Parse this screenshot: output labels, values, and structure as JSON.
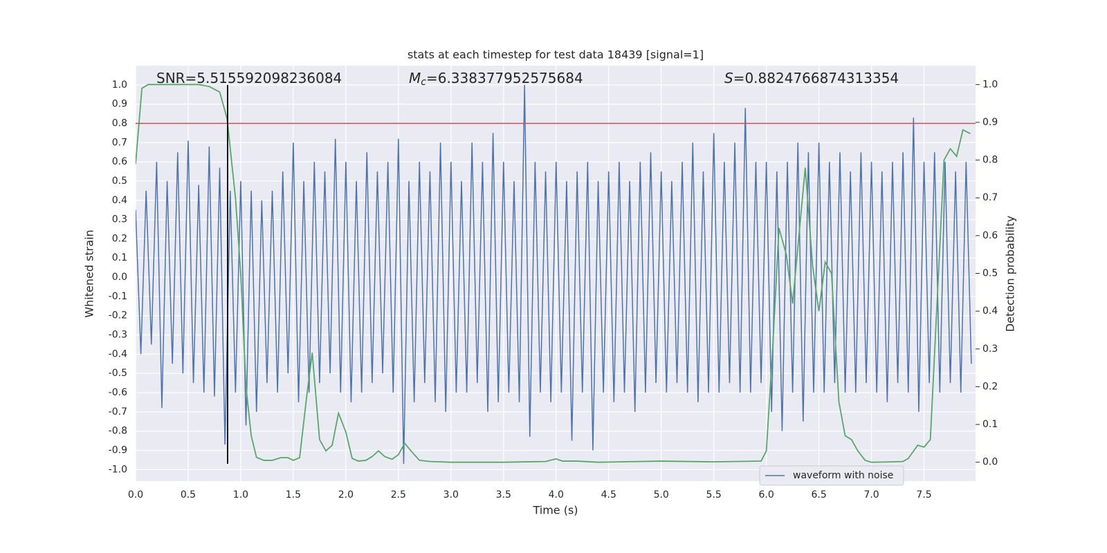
{
  "chart_data": {
    "type": "line",
    "title": "stats at each timestep for test data 18439 [signal=1]",
    "x_label": "Time (s)",
    "y_label": "Whitened strain",
    "y2_label": "Detection probability",
    "xlim": [
      0,
      7.99
    ],
    "ylim": [
      -1.06,
      1.1
    ],
    "y2lim": [
      -0.05,
      1.05
    ],
    "xticks": [
      {
        "value": 0,
        "label": "0.0"
      },
      0.5,
      {
        "value": 1,
        "label": "1.0"
      },
      1.5,
      {
        "value": 2,
        "label": "2.0"
      },
      2.5,
      {
        "value": 3,
        "label": "3.0"
      },
      3.5,
      {
        "value": 4,
        "label": "4.0"
      },
      4.5,
      {
        "value": 5,
        "label": "5.0"
      },
      5.5,
      {
        "value": 6,
        "label": "6.0"
      },
      6.5,
      {
        "value": 7,
        "label": "7.0"
      },
      7.5
    ],
    "yticks": [
      {
        "value": -1,
        "label": "-1.0"
      },
      -0.9,
      -0.8,
      -0.7,
      -0.6,
      -0.5,
      -0.4,
      -0.3,
      -0.2,
      -0.1,
      {
        "value": 0,
        "label": "0.0"
      },
      0.1,
      0.2,
      0.3,
      0.4,
      0.5,
      0.6,
      0.7,
      0.8,
      0.9,
      {
        "value": 1,
        "label": "1.0"
      }
    ],
    "y2ticks": [
      {
        "value": 0,
        "label": "0.0"
      },
      0.1,
      0.2,
      0.3,
      0.4,
      0.5,
      0.6,
      0.7,
      0.8,
      0.9,
      {
        "value": 1,
        "label": "1.0"
      }
    ],
    "grid": true,
    "legend": "lower right",
    "series": [
      {
        "name": "waveform with noise",
        "color": "#4c72b0",
        "x": [
          0,
          0.05,
          0.1,
          0.15,
          0.2,
          0.25,
          0.3,
          0.35,
          0.4,
          0.45,
          0.5,
          0.55,
          0.6,
          0.65,
          0.7,
          0.75,
          0.8,
          0.85,
          0.9,
          0.95,
          1,
          1.05,
          1.1,
          1.15,
          1.2,
          1.25,
          1.3,
          1.35,
          1.4,
          1.45,
          1.5,
          1.55,
          1.6,
          1.65,
          1.7,
          1.75,
          1.8,
          1.85,
          1.9,
          1.95,
          2,
          2.05,
          2.1,
          2.15,
          2.2,
          2.25,
          2.3,
          2.35,
          2.4,
          2.45,
          2.5,
          2.55,
          2.6,
          2.65,
          2.7,
          2.75,
          2.8,
          2.85,
          2.9,
          2.95,
          3,
          3.05,
          3.1,
          3.15,
          3.2,
          3.25,
          3.3,
          3.35,
          3.4,
          3.45,
          3.5,
          3.55,
          3.6,
          3.65,
          3.7,
          3.75,
          3.8,
          3.85,
          3.9,
          3.95,
          4,
          4.05,
          4.1,
          4.15,
          4.2,
          4.25,
          4.3,
          4.35,
          4.4,
          4.45,
          4.5,
          4.55,
          4.6,
          4.65,
          4.7,
          4.75,
          4.8,
          4.85,
          4.9,
          4.95,
          5,
          5.05,
          5.1,
          5.15,
          5.2,
          5.25,
          5.3,
          5.35,
          5.4,
          5.45,
          5.5,
          5.55,
          5.6,
          5.65,
          5.7,
          5.75,
          5.8,
          5.85,
          5.9,
          5.95,
          6,
          6.05,
          6.1,
          6.15,
          6.2,
          6.25,
          6.3,
          6.35,
          6.4,
          6.45,
          6.5,
          6.55,
          6.6,
          6.65,
          6.7,
          6.75,
          6.8,
          6.85,
          6.9,
          6.95,
          7,
          7.05,
          7.1,
          7.15,
          7.2,
          7.25,
          7.3,
          7.35,
          7.4,
          7.45,
          7.5,
          7.55,
          7.6,
          7.65,
          7.7,
          7.75,
          7.8,
          7.85,
          7.9,
          7.95
        ],
        "values": [
          0.35,
          -0.4,
          0.45,
          -0.35,
          0.6,
          -0.68,
          0.5,
          -0.45,
          0.65,
          -0.5,
          0.71,
          -0.55,
          0.48,
          -0.6,
          0.68,
          -0.62,
          0.57,
          -0.87,
          0.45,
          -0.6,
          0.5,
          -0.77,
          0.45,
          -0.7,
          0.4,
          -0.55,
          0.45,
          -0.6,
          0.55,
          -0.5,
          0.7,
          -0.65,
          0.5,
          -0.6,
          0.6,
          -0.55,
          0.55,
          -0.5,
          0.72,
          -0.6,
          0.6,
          -0.65,
          0.5,
          -0.6,
          0.65,
          -0.55,
          0.55,
          -0.5,
          0.6,
          -0.6,
          0.72,
          -0.97,
          0.5,
          -0.65,
          0.6,
          -0.55,
          0.55,
          -0.65,
          0.7,
          -0.7,
          0.6,
          -0.6,
          0.5,
          -0.6,
          0.7,
          -0.55,
          0.6,
          -0.7,
          0.75,
          -0.65,
          0.6,
          -0.6,
          0.5,
          -0.65,
          1.0,
          -0.83,
          0.6,
          -0.6,
          0.55,
          -0.65,
          0.6,
          -0.6,
          0.5,
          -0.85,
          0.55,
          -0.6,
          0.6,
          -0.9,
          0.5,
          -0.6,
          0.55,
          -0.65,
          0.6,
          -0.6,
          0.5,
          -0.7,
          0.6,
          -0.6,
          0.65,
          -0.55,
          0.55,
          -0.6,
          0.5,
          -0.55,
          0.6,
          -0.6,
          0.7,
          -0.65,
          0.55,
          -0.6,
          0.75,
          -0.6,
          0.6,
          -0.55,
          0.7,
          -0.6,
          0.88,
          -0.6,
          0.6,
          -0.55,
          0.6,
          -0.7,
          0.55,
          -0.8,
          0.6,
          -0.6,
          0.7,
          -0.75,
          0.65,
          -0.6,
          0.7,
          -0.6,
          0.6,
          -0.55,
          0.65,
          -0.6,
          0.55,
          -0.6,
          0.65,
          -0.55,
          0.6,
          -0.6,
          0.55,
          -0.65,
          0.6,
          -0.55,
          0.65,
          -0.6,
          0.83,
          -0.7,
          0.6,
          -0.55,
          0.65,
          -0.6,
          0.6,
          -0.55,
          0.55,
          -0.6,
          0.6,
          -0.45
        ]
      },
      {
        "color": "#55a868",
        "axis": "y2",
        "x": [
          0,
          0.06,
          0.12,
          0.2,
          0.4,
          0.6,
          0.7,
          0.8,
          0.87,
          0.95,
          1,
          1.05,
          1.1,
          1.15,
          1.22,
          1.3,
          1.38,
          1.45,
          1.5,
          1.56,
          1.63,
          1.68,
          1.75,
          1.81,
          1.87,
          1.93,
          2,
          2.06,
          2.12,
          2.19,
          2.25,
          2.31,
          2.37,
          2.44,
          2.5,
          2.56,
          2.62,
          2.7,
          2.8,
          3,
          3.5,
          3.9,
          4,
          4.06,
          4.2,
          4.4,
          5,
          5.5,
          5.95,
          6,
          6.06,
          6.12,
          6.19,
          6.25,
          6.31,
          6.37,
          6.44,
          6.5,
          6.56,
          6.62,
          6.69,
          6.75,
          6.81,
          6.87,
          6.94,
          7,
          7.2,
          7.3,
          7.35,
          7.44,
          7.5,
          7.56,
          7.62,
          7.69,
          7.75,
          7.81,
          7.87,
          7.94
        ],
        "values": [
          0.79,
          0.99,
          1.0,
          1.0,
          1.0,
          1.0,
          0.995,
          0.98,
          0.91,
          0.7,
          0.5,
          0.2,
          0.07,
          0.013,
          0.005,
          0.005,
          0.012,
          0.012,
          0.005,
          0.012,
          0.18,
          0.29,
          0.06,
          0.03,
          0.045,
          0.13,
          0.08,
          0.01,
          0.003,
          0.005,
          0.015,
          0.03,
          0.015,
          0.008,
          0.02,
          0.05,
          0.03,
          0.005,
          0.002,
          0,
          0,
          0.002,
          0.009,
          0.003,
          0.003,
          0,
          0.003,
          0.001,
          0.003,
          0.03,
          0.3,
          0.62,
          0.55,
          0.42,
          0.6,
          0.78,
          0.52,
          0.4,
          0.53,
          0.5,
          0.16,
          0.07,
          0.06,
          0.03,
          0.005,
          0,
          0.001,
          0.002,
          0.01,
          0.045,
          0.04,
          0.06,
          0.4,
          0.8,
          0.83,
          0.81,
          0.88,
          0.87
        ]
      }
    ],
    "hlines": [
      {
        "y": 0.8,
        "color": "#c44e52"
      }
    ],
    "vlines": [
      {
        "x": 0.875,
        "ymin": -0.97,
        "ymax": 1.0,
        "color": "#000000"
      }
    ],
    "annotations": [
      {
        "text": "SNR=5.515592098236084"
      },
      {
        "symbol": "M",
        "subscript": "c",
        "text": "=6.338377952575684"
      },
      {
        "symbol": "S",
        "text": "=0.8824766874313354"
      }
    ]
  }
}
